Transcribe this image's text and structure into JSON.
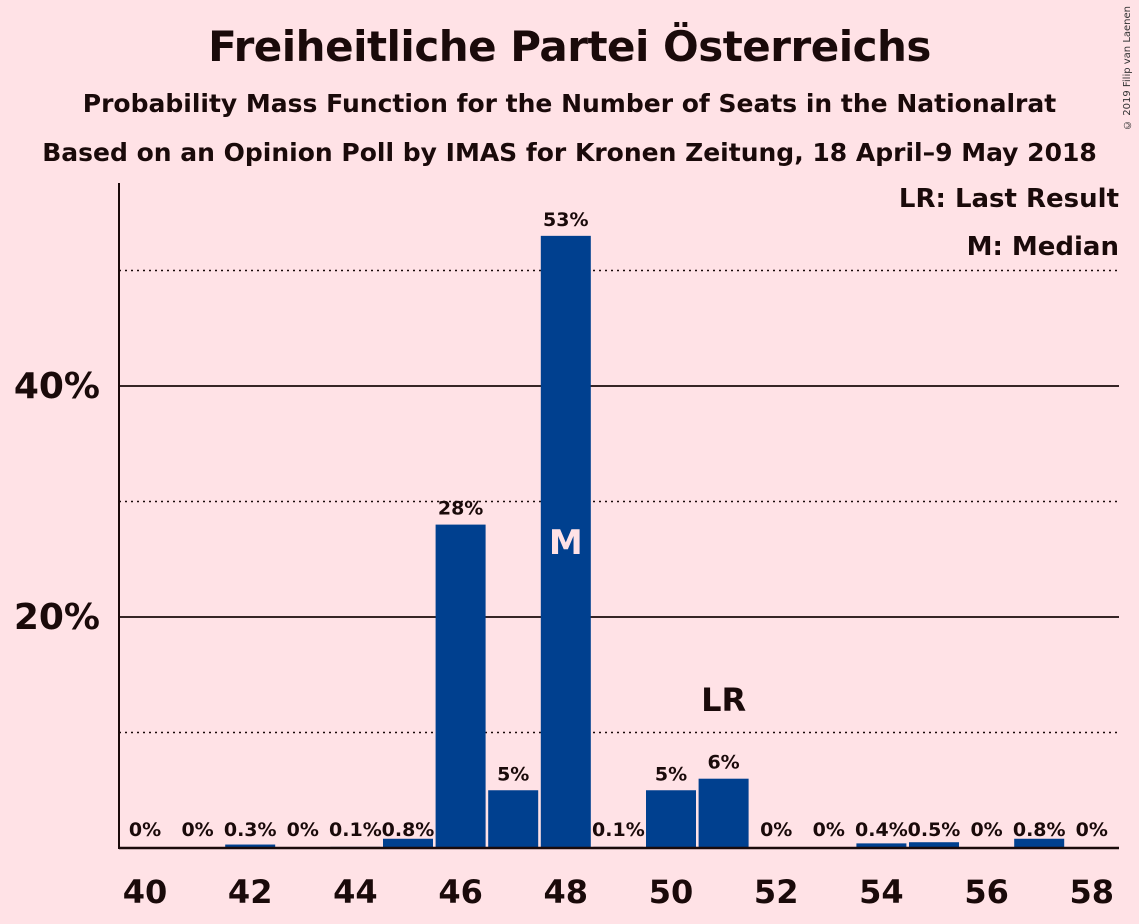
{
  "chart_data": {
    "type": "bar",
    "title": "Freiheitliche Partei Österreichs",
    "subtitle": "Probability Mass Function for the Number of Seats in the Nationalrat",
    "subtitle2": "Based on an Opinion Poll by IMAS for Kronen Zeitung, 18 April–9 May 2018",
    "copyright": "© 2019 Filip van Laenen",
    "categories": [
      40,
      41,
      42,
      43,
      44,
      45,
      46,
      47,
      48,
      49,
      50,
      51,
      52,
      53,
      54,
      55,
      56,
      57,
      58
    ],
    "values": [
      0,
      0,
      0.3,
      0,
      0.1,
      0.8,
      28,
      5,
      53,
      0.1,
      5,
      6,
      0,
      0,
      0.4,
      0.5,
      0,
      0.8,
      0
    ],
    "labels": [
      "0%",
      "0%",
      "0.3%",
      "0%",
      "0.1%",
      "0.8%",
      "28%",
      "5%",
      "53%",
      "0.1%",
      "5%",
      "6%",
      "0%",
      "0%",
      "0.4%",
      "0.5%",
      "0%",
      "0.8%",
      "0%"
    ],
    "x_tick_labels": [
      "40",
      "42",
      "44",
      "46",
      "48",
      "50",
      "52",
      "54",
      "56",
      "58"
    ],
    "y_tick_labels": [
      "20%",
      "40%"
    ],
    "y_ticks": [
      20,
      40
    ],
    "ylim": [
      0,
      57
    ],
    "gridlines_dotted": [
      10,
      30,
      50
    ],
    "median_seat": 48,
    "median_marker": "M",
    "last_result_seat": 51,
    "last_result_marker": "LR",
    "legend": [
      "LR: Last Result",
      "M: Median"
    ],
    "bar_color": "#00408F",
    "background": "#FFE2E6"
  }
}
